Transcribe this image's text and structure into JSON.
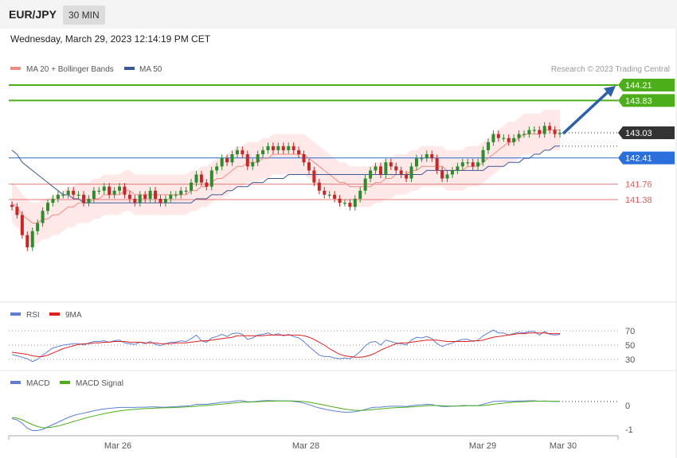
{
  "header": {
    "symbol": "EUR/JPY",
    "timeframe": "30 MIN",
    "datetime": "Wednesday, March 29, 2023 12:14:19 PM CET"
  },
  "legend": {
    "ma20": "MA 20 + Bollinger Bands",
    "ma50": "MA 50",
    "credit": "Research © 2023 Trading Central",
    "rsi": "RSI",
    "rsi9": "9MA",
    "macd": "MACD",
    "macd_signal": "MACD Signal"
  },
  "colors": {
    "green_level": "#4caf1a",
    "blue_level": "#2a6fdb",
    "red_level": "#e05a5a",
    "up_candle": "#2e8b2e",
    "down_candle": "#c62828",
    "ma20": "#f28b82",
    "ma50": "#3b5998",
    "band": "#fde0e0",
    "arrow": "#2e5fa8",
    "rsi": "#5b7fd8",
    "rsi9": "#e02020",
    "macd": "#5b7fd8",
    "macd_signal": "#4caf1a"
  },
  "chart_data": {
    "type": "candlestick",
    "x_ticks": [
      "Mar 26",
      "Mar 28",
      "Mar 29",
      "Mar 30"
    ],
    "price_axis": {
      "min": 139.8,
      "max": 144.4
    },
    "levels": [
      {
        "value": 144.21,
        "label": "144.21",
        "kind": "resistance",
        "color": "#4caf1a"
      },
      {
        "value": 143.83,
        "label": "143.83",
        "kind": "resistance",
        "color": "#4caf1a"
      },
      {
        "value": 143.03,
        "label": "143.03",
        "kind": "last",
        "color": "#333333"
      },
      {
        "value": 142.41,
        "label": "142.41",
        "kind": "pivot",
        "color": "#2a6fdb"
      },
      {
        "value": 141.76,
        "label": "141.76",
        "kind": "support",
        "color": "#e05a5a"
      },
      {
        "value": 141.38,
        "label": "141.38",
        "kind": "support",
        "color": "#e05a5a"
      }
    ],
    "close": [
      141.2,
      141.0,
      140.5,
      140.2,
      140.6,
      140.8,
      141.1,
      141.3,
      141.4,
      141.5,
      141.5,
      141.6,
      141.5,
      141.5,
      141.3,
      141.4,
      141.6,
      141.6,
      141.7,
      141.5,
      141.6,
      141.7,
      141.5,
      141.4,
      141.3,
      141.5,
      141.4,
      141.6,
      141.4,
      141.3,
      141.4,
      141.5,
      141.5,
      141.6,
      141.6,
      141.8,
      142.0,
      141.8,
      141.7,
      142.1,
      142.2,
      142.4,
      142.3,
      142.5,
      142.6,
      142.5,
      142.2,
      142.3,
      142.5,
      142.6,
      142.7,
      142.6,
      142.7,
      142.6,
      142.7,
      142.6,
      142.5,
      142.3,
      142.1,
      141.8,
      141.6,
      141.5,
      141.5,
      141.4,
      141.3,
      141.3,
      141.2,
      141.4,
      141.6,
      141.9,
      142.1,
      142.2,
      142.0,
      142.3,
      142.2,
      142.1,
      142.0,
      141.9,
      142.2,
      142.4,
      142.4,
      142.5,
      142.4,
      142.1,
      141.9,
      142.0,
      142.1,
      142.2,
      142.3,
      142.3,
      142.2,
      142.3,
      142.6,
      142.8,
      143.0,
      142.9,
      142.9,
      142.8,
      142.9,
      143.0,
      143.0,
      143.1,
      143.1,
      143.0,
      143.2,
      143.1,
      143.0,
      143.03
    ],
    "ma20": [
      141.3,
      141.2,
      141.0,
      140.9,
      140.8,
      140.8,
      140.9,
      140.9,
      141.0,
      141.0,
      141.1,
      141.2,
      141.2,
      141.3,
      141.3,
      141.3,
      141.4,
      141.4,
      141.5,
      141.5,
      141.5,
      141.5,
      141.6,
      141.6,
      141.5,
      141.5,
      141.5,
      141.5,
      141.5,
      141.5,
      141.5,
      141.5,
      141.5,
      141.5,
      141.5,
      141.6,
      141.6,
      141.7,
      141.7,
      141.8,
      141.9,
      141.9,
      142.0,
      142.1,
      142.2,
      142.2,
      142.3,
      142.3,
      142.3,
      142.4,
      142.4,
      142.5,
      142.5,
      142.5,
      142.5,
      142.5,
      142.5,
      142.5,
      142.4,
      142.3,
      142.2,
      142.1,
      142.0,
      141.9,
      141.8,
      141.8,
      141.7,
      141.7,
      141.7,
      141.7,
      141.7,
      141.8,
      141.8,
      141.9,
      141.9,
      142.0,
      142.0,
      142.0,
      142.1,
      142.1,
      142.2,
      142.2,
      142.2,
      142.2,
      142.2,
      142.1,
      142.1,
      142.1,
      142.1,
      142.2,
      142.2,
      142.2,
      142.3,
      142.4,
      142.5,
      142.6,
      142.7,
      142.8,
      142.8,
      142.9,
      143.0,
      143.0,
      143.0,
      143.0,
      143.1,
      143.1,
      143.1,
      143.1
    ],
    "ma50": [
      142.6,
      142.5,
      142.3,
      142.2,
      142.1,
      142.0,
      141.9,
      141.8,
      141.7,
      141.6,
      141.5,
      141.5,
      141.4,
      141.4,
      141.3,
      141.3,
      141.3,
      141.3,
      141.3,
      141.3,
      141.3,
      141.3,
      141.3,
      141.3,
      141.3,
      141.3,
      141.3,
      141.3,
      141.3,
      141.3,
      141.3,
      141.3,
      141.3,
      141.3,
      141.3,
      141.3,
      141.4,
      141.4,
      141.4,
      141.5,
      141.5,
      141.5,
      141.6,
      141.6,
      141.7,
      141.7,
      141.7,
      141.8,
      141.8,
      141.8,
      141.9,
      141.9,
      141.9,
      141.9,
      142.0,
      142.0,
      142.0,
      142.0,
      142.0,
      142.0,
      142.0,
      142.0,
      142.0,
      142.0,
      142.0,
      142.0,
      142.0,
      142.0,
      142.0,
      142.0,
      142.0,
      142.0,
      142.0,
      142.0,
      142.0,
      142.0,
      142.0,
      142.0,
      142.0,
      142.0,
      142.0,
      142.1,
      142.1,
      142.1,
      142.1,
      142.1,
      142.1,
      142.1,
      142.1,
      142.1,
      142.1,
      142.1,
      142.1,
      142.2,
      142.2,
      142.2,
      142.2,
      142.3,
      142.3,
      142.3,
      142.4,
      142.4,
      142.5,
      142.5,
      142.6,
      142.6,
      142.7,
      142.7
    ],
    "band_width": 0.5,
    "target_arrow": {
      "from": 143.03,
      "to": 144.21
    },
    "rsi": {
      "ticks": [
        70,
        50,
        30
      ],
      "values": [
        37,
        35,
        33,
        31,
        27,
        30,
        36,
        41,
        46,
        48,
        50,
        51,
        52,
        52,
        50,
        53,
        55,
        55,
        56,
        54,
        56,
        57,
        53,
        52,
        51,
        54,
        52,
        55,
        51,
        49,
        52,
        54,
        54,
        56,
        55,
        59,
        64,
        56,
        54,
        60,
        62,
        65,
        62,
        66,
        67,
        65,
        58,
        60,
        64,
        65,
        67,
        64,
        66,
        63,
        65,
        62,
        60,
        55,
        48,
        42,
        36,
        34,
        34,
        32,
        31,
        32,
        31,
        35,
        41,
        49,
        54,
        55,
        50,
        57,
        55,
        53,
        52,
        50,
        57,
        61,
        60,
        62,
        59,
        52,
        48,
        51,
        53,
        56,
        58,
        58,
        55,
        57,
        63,
        67,
        71,
        67,
        67,
        64,
        66,
        68,
        67,
        69,
        69,
        64,
        69,
        65,
        64,
        65
      ],
      "ma9": [
        40,
        39,
        38,
        37,
        35,
        34,
        34,
        36,
        39,
        42,
        45,
        47,
        49,
        51,
        52,
        52,
        53,
        53,
        54,
        54,
        55,
        55,
        55,
        54,
        54,
        54,
        53,
        53,
        53,
        52,
        52,
        52,
        53,
        53,
        53,
        54,
        55,
        56,
        56,
        57,
        58,
        59,
        60,
        61,
        63,
        63,
        63,
        63,
        63,
        63,
        64,
        64,
        64,
        64,
        64,
        64,
        64,
        63,
        61,
        58,
        54,
        50,
        45,
        41,
        37,
        35,
        34,
        33,
        33,
        34,
        36,
        39,
        43,
        46,
        49,
        52,
        53,
        53,
        54,
        55,
        56,
        57,
        57,
        57,
        56,
        55,
        55,
        55,
        55,
        55,
        56,
        56,
        57,
        59,
        61,
        62,
        63,
        64,
        65,
        66,
        66,
        67,
        67,
        67,
        67,
        66,
        66,
        66
      ]
    },
    "macd": {
      "ticks": [
        0,
        -1
      ],
      "values": [
        -0.55,
        -0.6,
        -0.75,
        -0.95,
        -1.05,
        -1.05,
        -1.0,
        -0.9,
        -0.8,
        -0.7,
        -0.6,
        -0.5,
        -0.42,
        -0.36,
        -0.32,
        -0.27,
        -0.22,
        -0.18,
        -0.14,
        -0.12,
        -0.1,
        -0.08,
        -0.08,
        -0.08,
        -0.08,
        -0.07,
        -0.07,
        -0.06,
        -0.06,
        -0.07,
        -0.07,
        -0.06,
        -0.05,
        -0.03,
        -0.02,
        0.0,
        0.05,
        0.05,
        0.05,
        0.08,
        0.1,
        0.14,
        0.14,
        0.17,
        0.2,
        0.2,
        0.16,
        0.16,
        0.18,
        0.2,
        0.21,
        0.2,
        0.2,
        0.19,
        0.19,
        0.17,
        0.15,
        0.1,
        0.04,
        -0.04,
        -0.1,
        -0.15,
        -0.19,
        -0.23,
        -0.26,
        -0.28,
        -0.28,
        -0.26,
        -0.22,
        -0.16,
        -0.1,
        -0.07,
        -0.07,
        -0.04,
        -0.03,
        -0.03,
        -0.03,
        -0.04,
        -0.01,
        0.02,
        0.03,
        0.05,
        0.04,
        -0.01,
        -0.04,
        -0.04,
        -0.03,
        -0.02,
        0.0,
        0.0,
        -0.01,
        0.0,
        0.05,
        0.11,
        0.17,
        0.18,
        0.19,
        0.18,
        0.18,
        0.19,
        0.19,
        0.2,
        0.2,
        0.18,
        0.19,
        0.18,
        0.17,
        0.17
      ],
      "signal": [
        -0.5,
        -0.53,
        -0.6,
        -0.7,
        -0.8,
        -0.88,
        -0.93,
        -0.93,
        -0.9,
        -0.86,
        -0.8,
        -0.74,
        -0.67,
        -0.61,
        -0.55,
        -0.49,
        -0.44,
        -0.39,
        -0.34,
        -0.3,
        -0.26,
        -0.23,
        -0.2,
        -0.18,
        -0.16,
        -0.14,
        -0.13,
        -0.12,
        -0.11,
        -0.1,
        -0.09,
        -0.09,
        -0.08,
        -0.07,
        -0.06,
        -0.05,
        -0.03,
        -0.01,
        0.0,
        0.02,
        0.04,
        0.06,
        0.08,
        0.1,
        0.12,
        0.14,
        0.14,
        0.15,
        0.16,
        0.17,
        0.18,
        0.18,
        0.19,
        0.19,
        0.19,
        0.19,
        0.18,
        0.17,
        0.14,
        0.1,
        0.06,
        0.02,
        -0.03,
        -0.07,
        -0.11,
        -0.15,
        -0.18,
        -0.2,
        -0.21,
        -0.2,
        -0.18,
        -0.16,
        -0.14,
        -0.12,
        -0.1,
        -0.09,
        -0.08,
        -0.07,
        -0.06,
        -0.04,
        -0.03,
        -0.01,
        0.0,
        0.0,
        -0.01,
        -0.02,
        -0.02,
        -0.02,
        -0.02,
        -0.01,
        -0.01,
        -0.01,
        0.0,
        0.02,
        0.05,
        0.08,
        0.1,
        0.12,
        0.14,
        0.15,
        0.16,
        0.17,
        0.18,
        0.18,
        0.18,
        0.18,
        0.18,
        0.18
      ]
    }
  }
}
